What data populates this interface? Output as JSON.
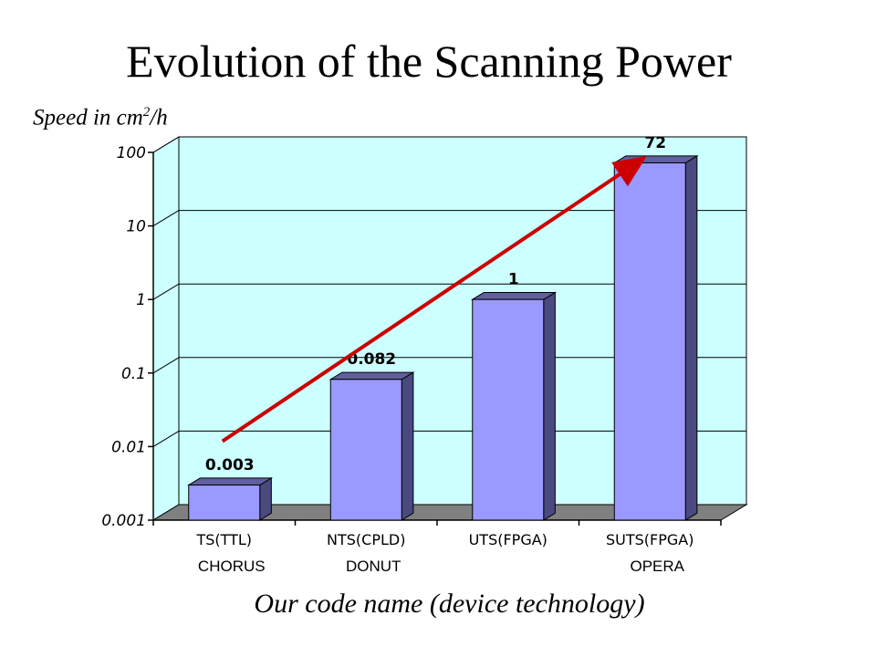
{
  "page": {
    "title": "Evolution of the Scanning Power"
  },
  "chart_data": {
    "type": "bar",
    "title": "Evolution of the Scanning Power",
    "ylabel_text": "Speed in cm",
    "ylabel_sup": "2",
    "ylabel_tail": "/h",
    "xlabel": "Our code name (device technology)",
    "y_scale": "log",
    "ylim": [
      0.001,
      100
    ],
    "y_ticks": [
      "0.001",
      "0.01",
      "0.1",
      "1",
      "10",
      "100"
    ],
    "categories": [
      "TS(TTL)",
      "NTS(CPLD)",
      "UTS(FPGA)",
      "SUTS(FPGA)"
    ],
    "values": [
      0.003,
      0.082,
      1,
      72
    ],
    "data_labels": [
      "0.003",
      "0.082",
      "1",
      "72"
    ],
    "code_names": [
      {
        "category": "TS(TTL)",
        "name": "CHORUS"
      },
      {
        "category": "NTS(CPLD)",
        "name": "DONUT"
      },
      {
        "category": "SUTS(FPGA)",
        "name": "OPERA"
      }
    ],
    "grid": true,
    "trend_arrow": true,
    "colors": {
      "plot_background": "#ccffff",
      "bar_front": "#9999ff",
      "bar_side": "#4a4a80",
      "bar_top": "#6060a0",
      "floor": "#808080",
      "trend_arrow": "#cc0000",
      "axis": "#000000"
    }
  }
}
